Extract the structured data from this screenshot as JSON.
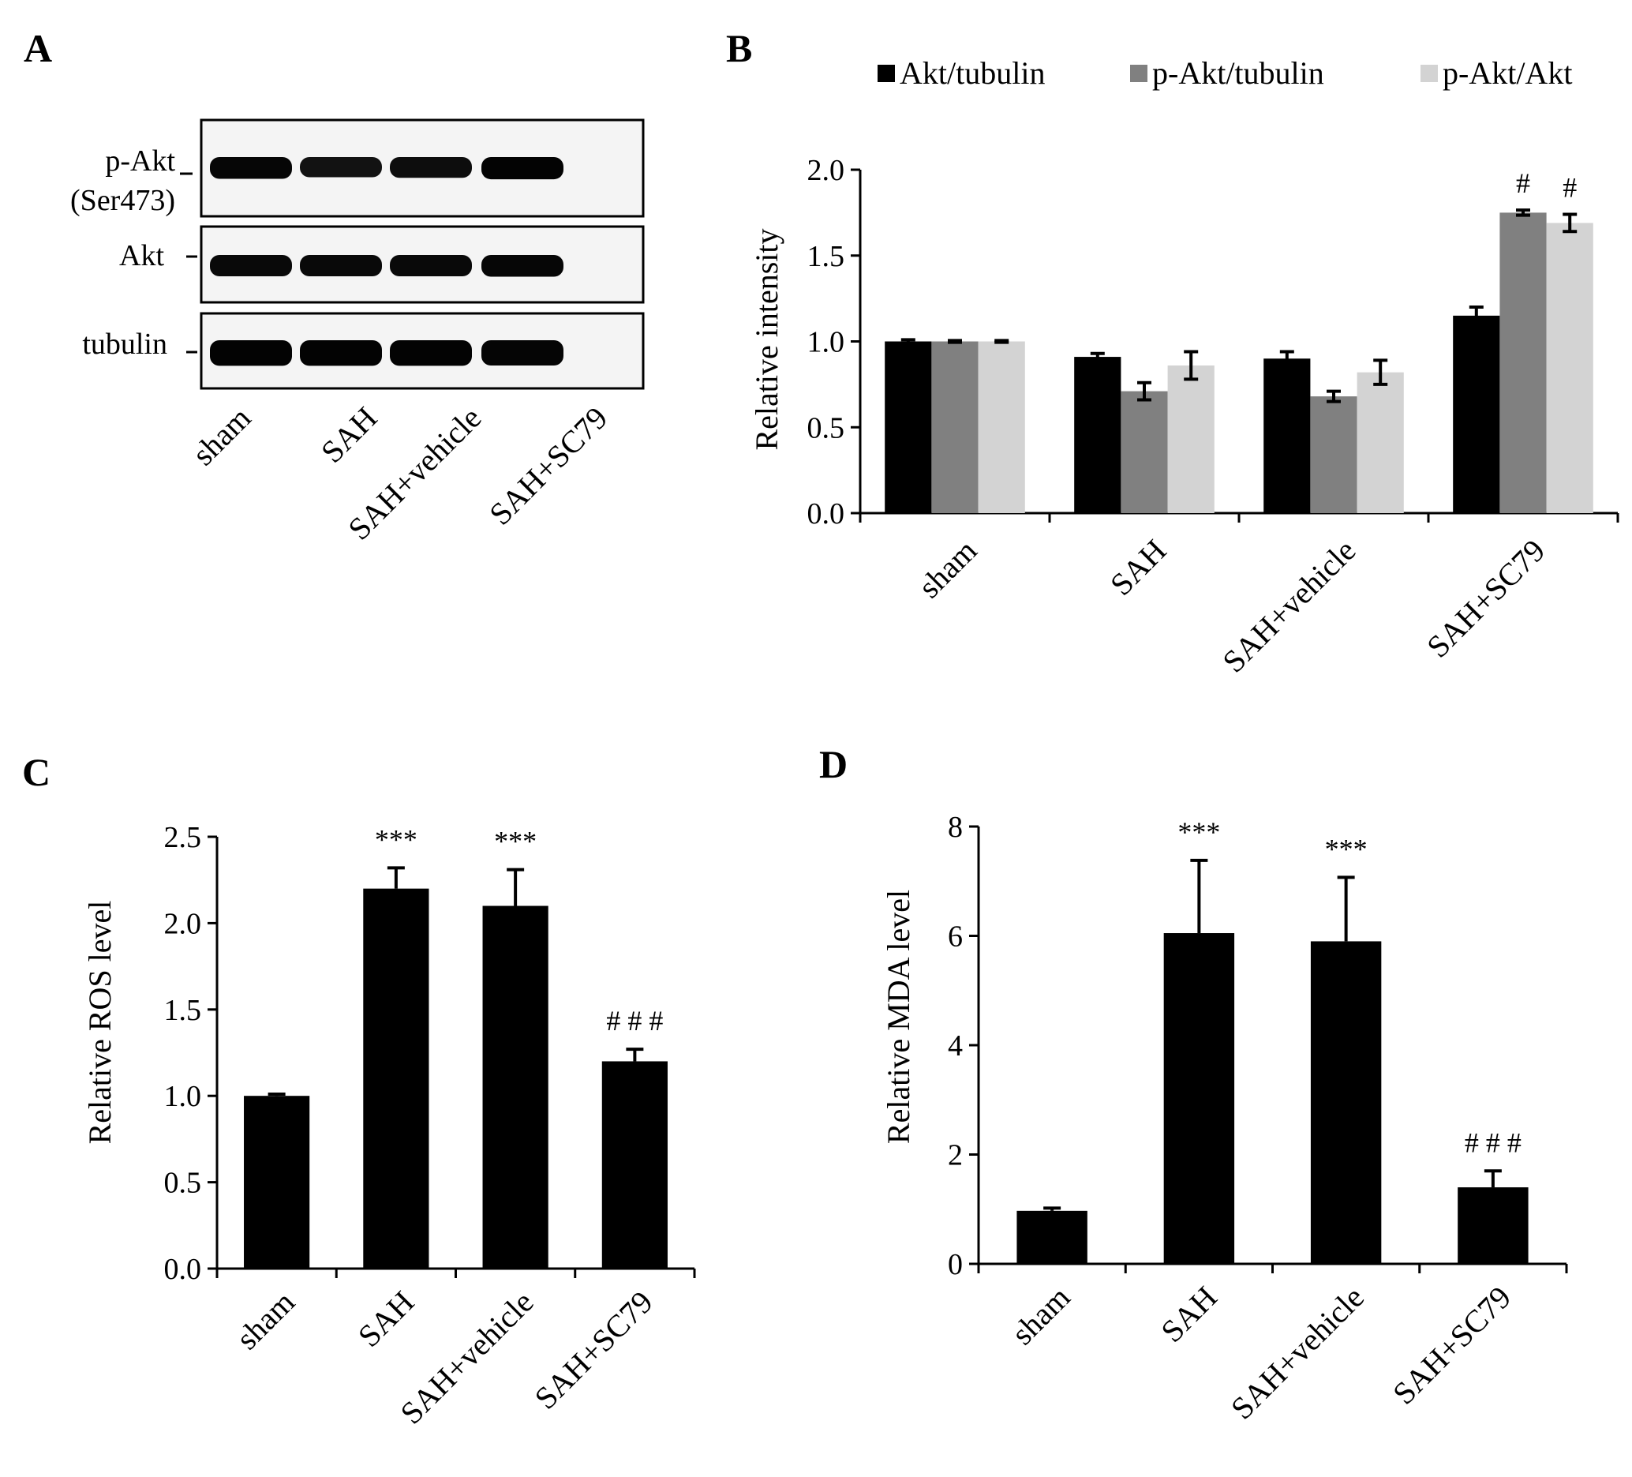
{
  "colors": {
    "black": "#000000",
    "dark_gray": "#808080",
    "light_gray": "#d3d3d3"
  },
  "panelA": {
    "letter": "A",
    "blot_labels": [
      "p-Akt",
      "(Ser473)",
      "Akt",
      "tubulin"
    ],
    "lanes": [
      "sham",
      "SAH",
      "SAH+vehicle",
      "SAH+SC79"
    ],
    "band_intensity": {
      "p-Akt": [
        0.9,
        0.7,
        0.78,
        0.95
      ],
      "Akt": [
        0.85,
        0.85,
        0.85,
        0.9
      ],
      "tubulin": [
        0.95,
        0.95,
        0.95,
        0.92
      ]
    }
  },
  "chart_data": [
    {
      "panel": "B",
      "type": "bar",
      "title": "",
      "xlabel": "",
      "ylabel": "Relative intensity",
      "ylim": [
        0,
        2.0
      ],
      "yticks": [
        "0.0",
        "0.5",
        "1.0",
        "1.5",
        "2.0"
      ],
      "categories": [
        "sham",
        "SAH",
        "SAH+vehicle",
        "SAH+SC79"
      ],
      "legend_position": "top",
      "series": [
        {
          "name": "Akt/tubulin",
          "color": "#000000",
          "values": [
            1.0,
            0.91,
            0.9,
            1.15
          ],
          "errors": [
            0.01,
            0.02,
            0.04,
            0.05
          ]
        },
        {
          "name": "p-Akt/tubulin",
          "color": "#808080",
          "values": [
            1.0,
            0.71,
            0.68,
            1.75
          ],
          "errors": [
            0.005,
            0.05,
            0.03,
            0.015
          ]
        },
        {
          "name": "p-Akt/Akt",
          "color": "#d3d3d3",
          "values": [
            1.0,
            0.86,
            0.82,
            1.69
          ],
          "errors": [
            0.005,
            0.08,
            0.07,
            0.05
          ]
        }
      ],
      "annotations": [
        {
          "category": 3,
          "series": 1,
          "text": "#"
        },
        {
          "category": 3,
          "series": 2,
          "text": "#"
        }
      ]
    },
    {
      "panel": "C",
      "type": "bar",
      "title": "",
      "xlabel": "",
      "ylabel": "Relative ROS level",
      "ylim": [
        0,
        2.5
      ],
      "yticks": [
        "0.0",
        "0.5",
        "1.0",
        "1.5",
        "2.0",
        "2.5"
      ],
      "categories": [
        "sham",
        "SAH",
        "SAH+vehicle",
        "SAH+SC79"
      ],
      "values": [
        1.0,
        2.2,
        2.1,
        1.2
      ],
      "errors": [
        0.01,
        0.12,
        0.21,
        0.07
      ],
      "annotations": [
        "",
        "***",
        "***",
        "# # #"
      ]
    },
    {
      "panel": "D",
      "type": "bar",
      "title": "",
      "xlabel": "",
      "ylabel": "Relative MDA level",
      "ylim": [
        0,
        8
      ],
      "yticks": [
        "0",
        "2",
        "4",
        "6",
        "8"
      ],
      "categories": [
        "sham",
        "SAH",
        "SAH+vehicle",
        "SAH+SC79"
      ],
      "values": [
        0.97,
        6.05,
        5.9,
        1.4
      ],
      "errors": [
        0.05,
        1.33,
        1.17,
        0.3
      ],
      "annotations": [
        "",
        "***",
        "***",
        "# # #"
      ]
    }
  ]
}
